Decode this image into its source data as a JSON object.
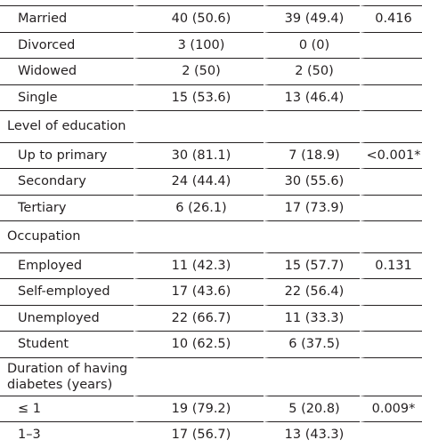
{
  "table": {
    "rows": [
      [
        "Married",
        "40 (50.6)",
        "39 (49.4)",
        "0.416"
      ],
      [
        "Divorced",
        "3 (100)",
        "0 (0)"
      ],
      [
        "Widowed",
        "2 (50)",
        "2 (50)"
      ],
      [
        "Single",
        "15 (53.6)",
        "13 (46.4)"
      ],
      [
        "Level of education"
      ],
      [
        "Up to primary",
        "30 (81.1)",
        "7 (18.9)",
        "<0.001*"
      ],
      [
        "Secondary",
        "24 (44.4)",
        "30 (55.6)"
      ],
      [
        "Tertiary",
        "6 (26.1)",
        "17 (73.9)"
      ],
      [
        "Occupation"
      ],
      [
        "Employed",
        "11 (42.3)",
        "15 (57.7)",
        "0.131"
      ],
      [
        "Self-employed",
        "17 (43.6)",
        "22 (56.4)"
      ],
      [
        "Unemployed",
        "22 (66.7)",
        "11 (33.3)"
      ],
      [
        "Student",
        "10 (62.5)",
        "6 (37.5)"
      ],
      [
        "Duration of having diabetes (years)"
      ],
      [
        "≤ 1",
        "19 (79.2)",
        "5 (20.8)",
        "0.009*"
      ],
      [
        "1–3",
        "17 (56.7)",
        "13 (43.3)"
      ]
    ]
  }
}
